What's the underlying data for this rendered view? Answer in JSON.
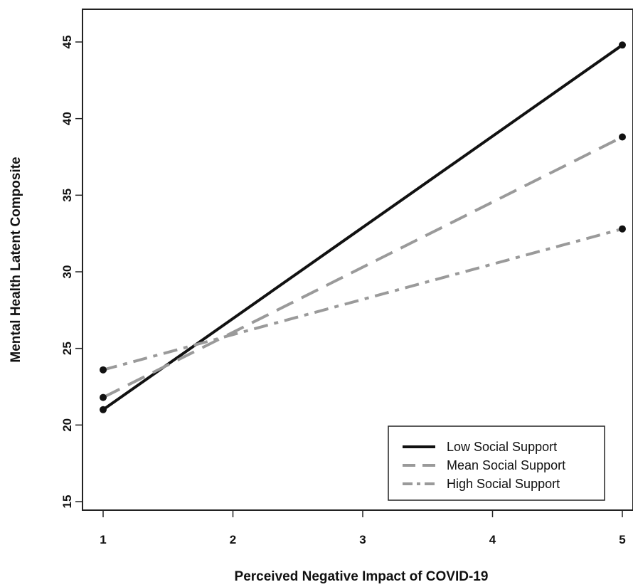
{
  "chart_data": {
    "type": "line",
    "xlabel": "Perceived Negative Impact of COVID-19",
    "ylabel": "Mental Health Latent Composite",
    "xlim": [
      1,
      5
    ],
    "ylim": [
      15,
      45
    ],
    "x_ticks": [
      1,
      2,
      3,
      4,
      5
    ],
    "y_ticks": [
      15,
      20,
      25,
      30,
      35,
      40,
      45
    ],
    "grid": false,
    "legend_position": "bottom-right",
    "series": [
      {
        "name": "Low Social Support",
        "x": [
          1,
          5
        ],
        "y": [
          21.0,
          44.8
        ],
        "color": "#111111",
        "dash": "solid"
      },
      {
        "name": "Mean Social Support",
        "x": [
          1,
          5
        ],
        "y": [
          21.8,
          38.8
        ],
        "color": "#9a9a9a",
        "dash": "long-dash"
      },
      {
        "name": "High Social Support",
        "x": [
          1,
          5
        ],
        "y": [
          23.6,
          32.8
        ],
        "color": "#9a9a9a",
        "dash": "dot-dash"
      }
    ]
  }
}
